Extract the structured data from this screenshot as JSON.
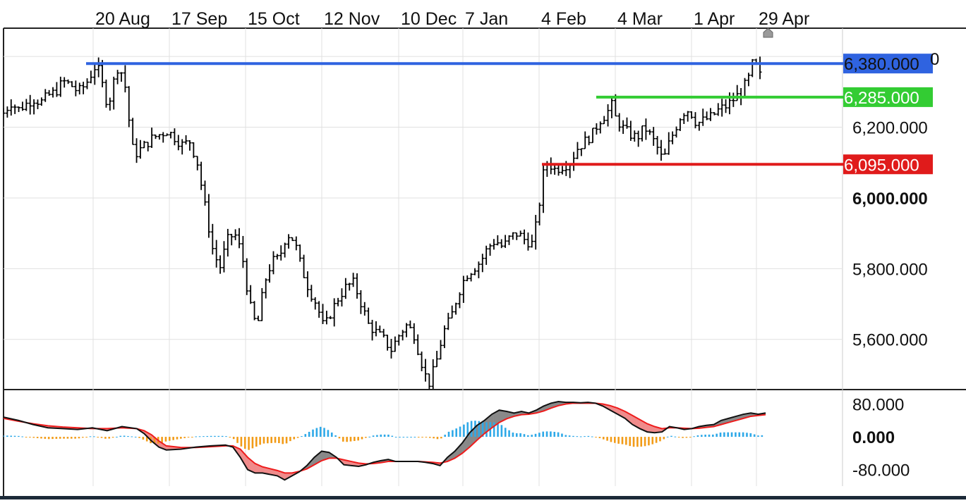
{
  "chart_data": [
    {
      "type": "ohlc",
      "x_tick_labels": [
        "20 Aug",
        "17 Sep",
        "15 Oct",
        "12 Nov",
        "10 Dec",
        "7 Jan",
        "4 Feb",
        "4 Mar",
        "1 Apr",
        "29 Apr"
      ],
      "y_tick_labels": [
        "6,200.000",
        "6,000.000",
        "5,800.000",
        "5,600.000"
      ],
      "y_bold_label": "6,000.000",
      "ylim": [
        5460,
        6480
      ],
      "grid": true,
      "horizontal_levels": [
        {
          "value": 6380,
          "label": "6,380.000",
          "color": "#2f63e0"
        },
        {
          "value": 6285,
          "label": "6,285.000",
          "color": "#33cc33"
        },
        {
          "value": 6095,
          "label": "6,095.000",
          "color": "#e01b1b"
        }
      ],
      "partial_top_label": "0",
      "series_path": [
        [
          0,
          6240
        ],
        [
          10,
          6270
        ],
        [
          20,
          6250
        ],
        [
          30,
          6265
        ],
        [
          40,
          6280
        ],
        [
          50,
          6270
        ],
        [
          60,
          6290
        ],
        [
          70,
          6300
        ],
        [
          80,
          6330
        ],
        [
          90,
          6320
        ],
        [
          100,
          6300
        ],
        [
          110,
          6320
        ],
        [
          120,
          6360
        ],
        [
          125,
          6380
        ],
        [
          130,
          6340
        ],
        [
          135,
          6300
        ],
        [
          140,
          6260
        ],
        [
          145,
          6300
        ],
        [
          150,
          6350
        ],
        [
          155,
          6380
        ],
        [
          160,
          6340
        ],
        [
          165,
          6300
        ],
        [
          170,
          6180
        ],
        [
          175,
          6120
        ],
        [
          180,
          6130
        ],
        [
          190,
          6150
        ],
        [
          200,
          6170
        ],
        [
          210,
          6180
        ],
        [
          220,
          6190
        ],
        [
          230,
          6170
        ],
        [
          240,
          6150
        ],
        [
          250,
          6160
        ],
        [
          260,
          6100
        ],
        [
          270,
          5980
        ],
        [
          280,
          5860
        ],
        [
          290,
          5800
        ],
        [
          300,
          5880
        ],
        [
          310,
          5900
        ],
        [
          320,
          5840
        ],
        [
          330,
          5700
        ],
        [
          340,
          5630
        ],
        [
          350,
          5760
        ],
        [
          360,
          5820
        ],
        [
          370,
          5830
        ],
        [
          380,
          5900
        ],
        [
          390,
          5880
        ],
        [
          400,
          5800
        ],
        [
          410,
          5740
        ],
        [
          420,
          5700
        ],
        [
          430,
          5630
        ],
        [
          440,
          5680
        ],
        [
          450,
          5720
        ],
        [
          460,
          5750
        ],
        [
          470,
          5760
        ],
        [
          480,
          5700
        ],
        [
          490,
          5640
        ],
        [
          500,
          5620
        ],
        [
          510,
          5600
        ],
        [
          520,
          5570
        ],
        [
          530,
          5610
        ],
        [
          540,
          5640
        ],
        [
          550,
          5620
        ],
        [
          560,
          5540
        ],
        [
          570,
          5470
        ],
        [
          580,
          5530
        ],
        [
          590,
          5620
        ],
        [
          600,
          5660
        ],
        [
          610,
          5730
        ],
        [
          620,
          5780
        ],
        [
          630,
          5800
        ],
        [
          640,
          5820
        ],
        [
          650,
          5860
        ],
        [
          660,
          5880
        ],
        [
          670,
          5860
        ],
        [
          680,
          5890
        ],
        [
          690,
          5900
        ],
        [
          700,
          5880
        ],
        [
          710,
          5870
        ],
        [
          715,
          5930
        ],
        [
          720,
          6000
        ],
        [
          725,
          6080
        ],
        [
          730,
          6100
        ],
        [
          740,
          6080
        ],
        [
          750,
          6090
        ],
        [
          760,
          6100
        ],
        [
          770,
          6140
        ],
        [
          780,
          6160
        ],
        [
          790,
          6180
        ],
        [
          800,
          6220
        ],
        [
          810,
          6240
        ],
        [
          815,
          6270
        ],
        [
          820,
          6230
        ],
        [
          830,
          6200
        ],
        [
          840,
          6180
        ],
        [
          850,
          6170
        ],
        [
          860,
          6200
        ],
        [
          870,
          6170
        ],
        [
          880,
          6130
        ],
        [
          885,
          6100
        ],
        [
          890,
          6140
        ],
        [
          900,
          6190
        ],
        [
          910,
          6240
        ],
        [
          920,
          6250
        ],
        [
          930,
          6210
        ],
        [
          940,
          6220
        ],
        [
          950,
          6230
        ],
        [
          960,
          6250
        ],
        [
          970,
          6260
        ],
        [
          980,
          6280
        ],
        [
          990,
          6300
        ],
        [
          1000,
          6340
        ],
        [
          1005,
          6380
        ],
        [
          1010,
          6370
        ],
        [
          1015,
          6345
        ],
        [
          1020,
          6360
        ]
      ]
    },
    {
      "type": "macd",
      "y_tick_labels": [
        "80.000",
        "0.000",
        "-80.000"
      ],
      "y_bold_label": "0.000",
      "ylim": [
        -120,
        110
      ],
      "colors": {
        "macd": "#111111",
        "signal": "#ee1c1c",
        "hist_pos": "#2fa9e8",
        "hist_neg": "#f29b17",
        "fill_up": "#888888",
        "fill_down": "#f08a8a"
      },
      "macd": [
        [
          0,
          48
        ],
        [
          20,
          40
        ],
        [
          40,
          30
        ],
        [
          60,
          22
        ],
        [
          80,
          20
        ],
        [
          100,
          18
        ],
        [
          120,
          22
        ],
        [
          140,
          15
        ],
        [
          160,
          25
        ],
        [
          180,
          20
        ],
        [
          190,
          8
        ],
        [
          200,
          -10
        ],
        [
          210,
          -25
        ],
        [
          220,
          -32
        ],
        [
          240,
          -30
        ],
        [
          260,
          -25
        ],
        [
          280,
          -22
        ],
        [
          300,
          -20
        ],
        [
          310,
          -25
        ],
        [
          320,
          -50
        ],
        [
          330,
          -80
        ],
        [
          340,
          -88
        ],
        [
          350,
          -88
        ],
        [
          370,
          -95
        ],
        [
          380,
          -105
        ],
        [
          390,
          -95
        ],
        [
          400,
          -85
        ],
        [
          410,
          -70
        ],
        [
          420,
          -50
        ],
        [
          430,
          -35
        ],
        [
          440,
          -38
        ],
        [
          450,
          -50
        ],
        [
          460,
          -68
        ],
        [
          470,
          -70
        ],
        [
          480,
          -72
        ],
        [
          490,
          -68
        ],
        [
          500,
          -62
        ],
        [
          510,
          -58
        ],
        [
          520,
          -55
        ],
        [
          530,
          -60
        ],
        [
          540,
          -60
        ],
        [
          550,
          -60
        ],
        [
          560,
          -60
        ],
        [
          570,
          -62
        ],
        [
          580,
          -65
        ],
        [
          590,
          -70
        ],
        [
          600,
          -50
        ],
        [
          610,
          -35
        ],
        [
          620,
          -15
        ],
        [
          630,
          10
        ],
        [
          640,
          28
        ],
        [
          650,
          40
        ],
        [
          660,
          55
        ],
        [
          670,
          65
        ],
        [
          680,
          62
        ],
        [
          690,
          58
        ],
        [
          700,
          62
        ],
        [
          710,
          58
        ],
        [
          720,
          65
        ],
        [
          730,
          75
        ],
        [
          740,
          82
        ],
        [
          750,
          86
        ],
        [
          760,
          84
        ],
        [
          770,
          84
        ],
        [
          780,
          83
        ],
        [
          790,
          84
        ],
        [
          800,
          82
        ],
        [
          810,
          75
        ],
        [
          820,
          65
        ],
        [
          830,
          55
        ],
        [
          840,
          45
        ],
        [
          850,
          30
        ],
        [
          860,
          20
        ],
        [
          870,
          12
        ],
        [
          880,
          10
        ],
        [
          890,
          12
        ],
        [
          900,
          25
        ],
        [
          910,
          22
        ],
        [
          920,
          18
        ],
        [
          930,
          20
        ],
        [
          940,
          25
        ],
        [
          950,
          28
        ],
        [
          960,
          30
        ],
        [
          970,
          40
        ],
        [
          980,
          45
        ],
        [
          990,
          50
        ],
        [
          1000,
          55
        ],
        [
          1010,
          58
        ],
        [
          1020,
          55
        ],
        [
          1030,
          58
        ]
      ],
      "signal": [
        [
          0,
          45
        ],
        [
          20,
          38
        ],
        [
          40,
          32
        ],
        [
          60,
          27
        ],
        [
          80,
          24
        ],
        [
          100,
          22
        ],
        [
          120,
          20
        ],
        [
          140,
          20
        ],
        [
          160,
          22
        ],
        [
          180,
          20
        ],
        [
          190,
          15
        ],
        [
          200,
          5
        ],
        [
          210,
          -10
        ],
        [
          220,
          -22
        ],
        [
          240,
          -26
        ],
        [
          260,
          -26
        ],
        [
          280,
          -24
        ],
        [
          300,
          -22
        ],
        [
          310,
          -22
        ],
        [
          320,
          -30
        ],
        [
          330,
          -50
        ],
        [
          340,
          -65
        ],
        [
          350,
          -73
        ],
        [
          370,
          -82
        ],
        [
          380,
          -88
        ],
        [
          390,
          -88
        ],
        [
          400,
          -84
        ],
        [
          410,
          -78
        ],
        [
          420,
          -68
        ],
        [
          430,
          -58
        ],
        [
          440,
          -52
        ],
        [
          450,
          -52
        ],
        [
          460,
          -56
        ],
        [
          470,
          -60
        ],
        [
          480,
          -64
        ],
        [
          490,
          -66
        ],
        [
          500,
          -65
        ],
        [
          510,
          -63
        ],
        [
          520,
          -60
        ],
        [
          530,
          -60
        ],
        [
          540,
          -60
        ],
        [
          550,
          -60
        ],
        [
          560,
          -60
        ],
        [
          570,
          -61
        ],
        [
          580,
          -62
        ],
        [
          590,
          -64
        ],
        [
          600,
          -60
        ],
        [
          610,
          -52
        ],
        [
          620,
          -40
        ],
        [
          630,
          -25
        ],
        [
          640,
          -8
        ],
        [
          650,
          8
        ],
        [
          660,
          22
        ],
        [
          670,
          35
        ],
        [
          680,
          44
        ],
        [
          690,
          50
        ],
        [
          700,
          54
        ],
        [
          710,
          55
        ],
        [
          720,
          58
        ],
        [
          730,
          63
        ],
        [
          740,
          70
        ],
        [
          750,
          76
        ],
        [
          760,
          80
        ],
        [
          770,
          82
        ],
        [
          780,
          82
        ],
        [
          790,
          82
        ],
        [
          800,
          82
        ],
        [
          810,
          80
        ],
        [
          820,
          76
        ],
        [
          830,
          70
        ],
        [
          840,
          62
        ],
        [
          850,
          52
        ],
        [
          860,
          42
        ],
        [
          870,
          32
        ],
        [
          880,
          25
        ],
        [
          890,
          20
        ],
        [
          900,
          22
        ],
        [
          910,
          22
        ],
        [
          920,
          21
        ],
        [
          930,
          20
        ],
        [
          940,
          21
        ],
        [
          950,
          23
        ],
        [
          960,
          25
        ],
        [
          970,
          30
        ],
        [
          980,
          35
        ],
        [
          990,
          40
        ],
        [
          1000,
          45
        ],
        [
          1010,
          50
        ],
        [
          1020,
          52
        ],
        [
          1030,
          54
        ]
      ]
    }
  ]
}
